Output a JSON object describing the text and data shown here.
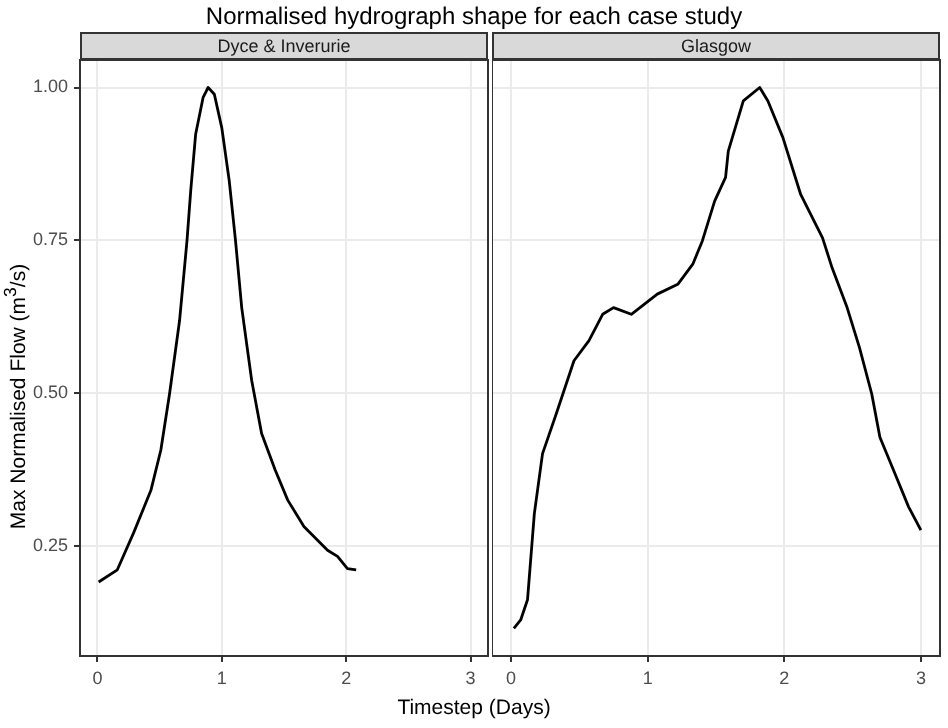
{
  "chart_data": [
    {
      "type": "line",
      "title": "Normalised hydrograph shape for each case study",
      "subtitle": "Dyce & Inverurie",
      "xlabel": "Timestep (Days)",
      "ylabel": "Max Normalised Flow (m$^{3}$/s)",
      "grid": true,
      "legend": false,
      "marker": "none",
      "line_style": "solid",
      "xlim": [
        -0.14,
        3.14
      ],
      "ylim": [
        0.07,
        1.045
      ],
      "xticks": [
        0,
        1,
        2,
        3
      ],
      "yticks": [
        {
          "value": 0.25,
          "label": "0.25"
        },
        {
          "value": 0.5,
          "label": "0.50"
        },
        {
          "value": 0.75,
          "label": "0.75"
        },
        {
          "value": 1,
          "label": "1.00"
        }
      ],
      "series": [
        {
          "color": "#000000",
          "x": [
            0.01,
            0.16,
            0.29,
            0.43,
            0.51,
            0.58,
            0.66,
            0.72,
            0.75,
            0.79,
            0.85,
            0.89,
            0.94,
            1.0,
            1.06,
            1.11,
            1.16,
            1.24,
            1.32,
            1.43,
            1.53,
            1.66,
            1.85,
            1.93,
            2.01,
            2.08
          ],
          "values": [
            0.191,
            0.211,
            0.271,
            0.341,
            0.407,
            0.499,
            0.618,
            0.749,
            0.831,
            0.924,
            0.984,
            1.0,
            0.989,
            0.934,
            0.847,
            0.75,
            0.64,
            0.521,
            0.434,
            0.374,
            0.325,
            0.282,
            0.243,
            0.233,
            0.213,
            0.211
          ]
        }
      ]
    },
    {
      "type": "line",
      "subtitle": "Glasgow",
      "grid": true,
      "legend": false,
      "marker": "none",
      "line_style": "solid",
      "tick_labels": "x",
      "xlim": [
        -0.14,
        3.14
      ],
      "ylim": [
        0.07,
        1.045
      ],
      "xticks": [
        0,
        1,
        2,
        3
      ],
      "yticks": [
        0.25,
        0.5,
        0.75,
        1
      ],
      "series": [
        {
          "color": "#000000",
          "x": [
            0.02,
            0.07,
            0.12,
            0.17,
            0.23,
            0.33,
            0.46,
            0.57,
            0.67,
            0.75,
            0.88,
            1.07,
            1.22,
            1.33,
            1.4,
            1.49,
            1.57,
            1.59,
            1.7,
            1.82,
            1.88,
            1.99,
            2.12,
            2.28,
            2.35,
            2.46,
            2.55,
            2.64,
            2.7,
            2.8,
            2.91,
            3.0
          ],
          "values": [
            0.115,
            0.129,
            0.162,
            0.303,
            0.401,
            0.466,
            0.553,
            0.586,
            0.629,
            0.64,
            0.629,
            0.662,
            0.678,
            0.711,
            0.749,
            0.814,
            0.853,
            0.896,
            0.978,
            1.0,
            0.978,
            0.918,
            0.825,
            0.754,
            0.705,
            0.64,
            0.575,
            0.499,
            0.428,
            0.374,
            0.314,
            0.276
          ]
        }
      ]
    }
  ]
}
